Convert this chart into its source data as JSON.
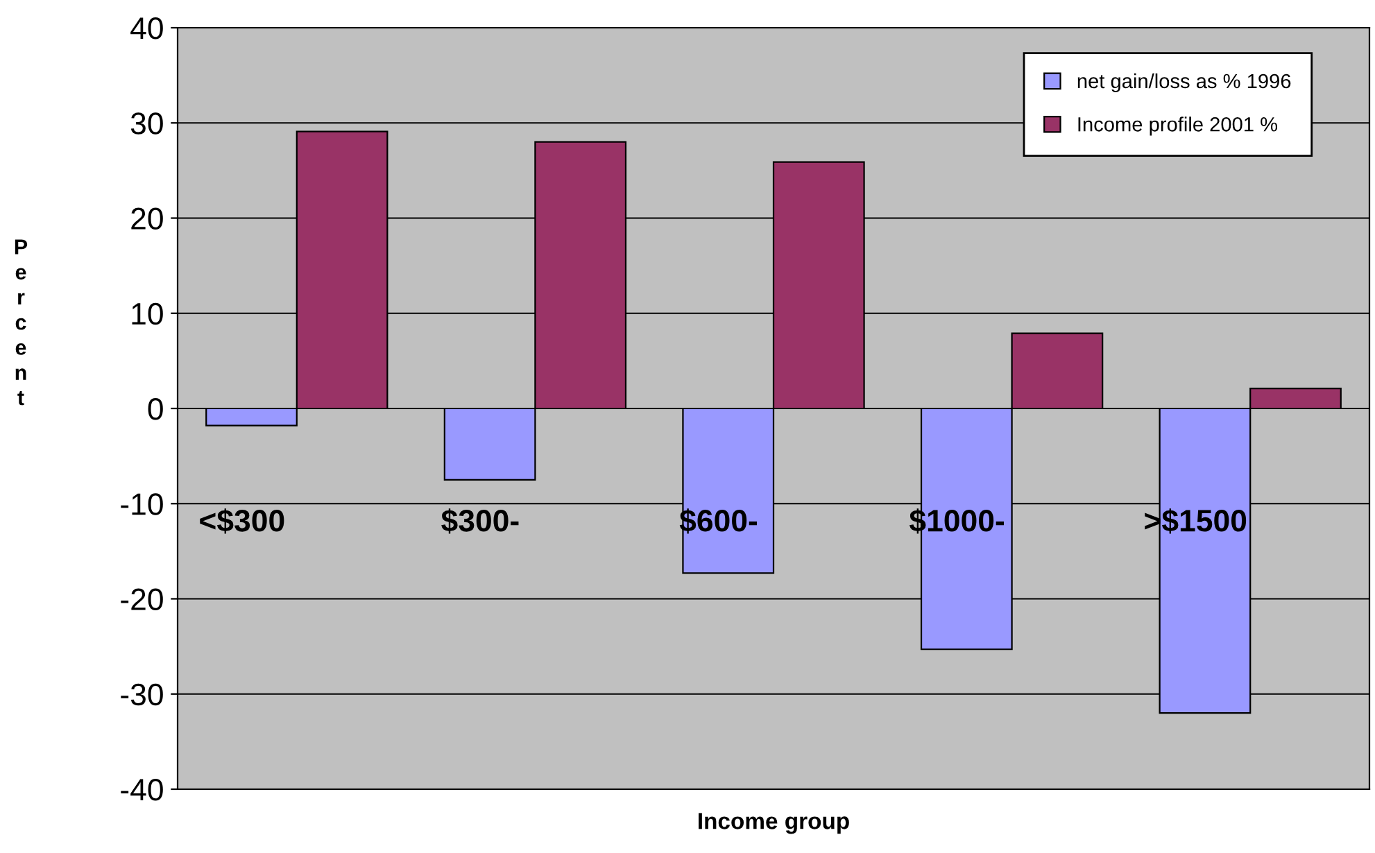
{
  "chart_data": {
    "type": "bar",
    "xlabel": "Income group",
    "ylabel": "Percent",
    "categories": [
      "<$300",
      "$300-",
      "$600-",
      "$1000-",
      ">$1500"
    ],
    "series": [
      {
        "name": "net gain/loss as % 1996",
        "color": "#9999ff",
        "values": [
          -1.8,
          -7.5,
          -17.3,
          -25.3,
          -32.0
        ]
      },
      {
        "name": "Income profile 2001 %",
        "color": "#993366",
        "values": [
          29.1,
          28.0,
          25.9,
          7.9,
          2.1
        ]
      }
    ],
    "ylim": [
      -40,
      40
    ],
    "yticks": [
      -40,
      -30,
      -20,
      -10,
      0,
      10,
      20,
      30,
      40
    ],
    "grid": "y",
    "legend": "top right"
  }
}
